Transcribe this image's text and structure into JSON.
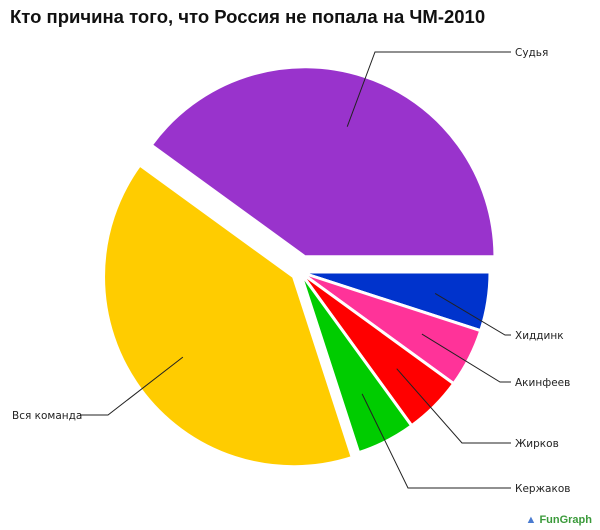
{
  "chart_data": {
    "type": "pie",
    "title": "Кто причина того, что Россия не попала на ЧМ-2010",
    "slices": [
      {
        "label": "Судья",
        "value": 40,
        "color": "#9933cc"
      },
      {
        "label": "Хиддинк",
        "value": 5,
        "color": "#0033cc"
      },
      {
        "label": "Акинфеев",
        "value": 5,
        "color": "#ff3399"
      },
      {
        "label": "Жирков",
        "value": 5,
        "color": "#ff0000"
      },
      {
        "label": "Кержаков",
        "value": 5,
        "color": "#00cc00"
      },
      {
        "label": "Вся команда",
        "value": 40,
        "color": "#ffcc00"
      }
    ]
  },
  "watermark": "FunGraph"
}
